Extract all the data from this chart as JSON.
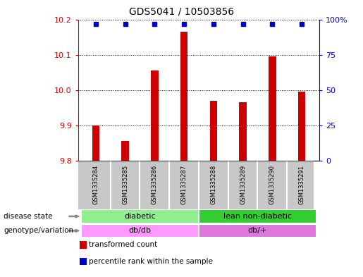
{
  "title": "GDS5041 / 10503856",
  "samples": [
    "GSM1335284",
    "GSM1335285",
    "GSM1335286",
    "GSM1335287",
    "GSM1335288",
    "GSM1335289",
    "GSM1335290",
    "GSM1335291"
  ],
  "transformed_count": [
    9.9,
    9.855,
    10.055,
    10.165,
    9.97,
    9.965,
    10.095,
    9.995
  ],
  "percentile_rank": [
    97,
    97,
    97,
    97,
    97,
    97,
    97,
    97
  ],
  "ylim_left": [
    9.8,
    10.2
  ],
  "ylim_right": [
    0,
    100
  ],
  "yticks_left": [
    9.8,
    9.9,
    10.0,
    10.1,
    10.2
  ],
  "yticks_right": [
    0,
    25,
    50,
    75,
    100
  ],
  "disease_state": [
    {
      "label": "diabetic",
      "start": 0,
      "end": 3,
      "color": "#90EE90"
    },
    {
      "label": "lean non-diabetic",
      "start": 4,
      "end": 7,
      "color": "#33CC33"
    }
  ],
  "genotype": [
    {
      "label": "db/db",
      "start": 0,
      "end": 3,
      "color": "#FF99FF"
    },
    {
      "label": "db/+",
      "start": 4,
      "end": 7,
      "color": "#DD77DD"
    }
  ],
  "bar_color": "#CC0000",
  "dot_color": "#0000CC",
  "grid_color": "#000000",
  "tick_color_left": "#CC0000",
  "tick_color_right": "#0000CC",
  "sample_box_color": "#C8C8C8",
  "legend_items": [
    {
      "label": "transformed count",
      "color": "#CC0000"
    },
    {
      "label": "percentile rank within the sample",
      "color": "#0000CC"
    }
  ]
}
